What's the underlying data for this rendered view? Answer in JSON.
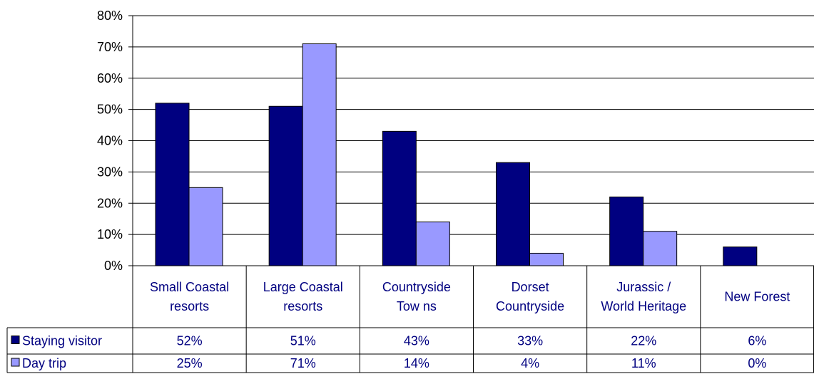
{
  "chart_data": {
    "type": "bar",
    "categories": [
      [
        "Small Coastal",
        "resorts"
      ],
      [
        "Large Coastal",
        "resorts"
      ],
      [
        "Countryside",
        "Tow ns"
      ],
      [
        "Dorset",
        "Countryside"
      ],
      [
        "Jurassic /",
        "World Heritage"
      ],
      [
        "New Forest"
      ]
    ],
    "series": [
      {
        "name": "Staying visitor",
        "color": "#000080",
        "values": [
          52,
          51,
          43,
          33,
          22,
          6
        ],
        "labels": [
          "52%",
          "51%",
          "43%",
          "33%",
          "22%",
          "6%"
        ]
      },
      {
        "name": "Day trip",
        "color": "#9999FF",
        "values": [
          25,
          71,
          14,
          4,
          11,
          0
        ],
        "labels": [
          "25%",
          "71%",
          "14%",
          "4%",
          "11%",
          "0%"
        ]
      }
    ],
    "y_ticks": [
      "0%",
      "10%",
      "20%",
      "30%",
      "40%",
      "50%",
      "60%",
      "70%",
      "80%"
    ],
    "ylim": [
      0,
      80
    ],
    "grid": true,
    "legend": "data-table"
  }
}
